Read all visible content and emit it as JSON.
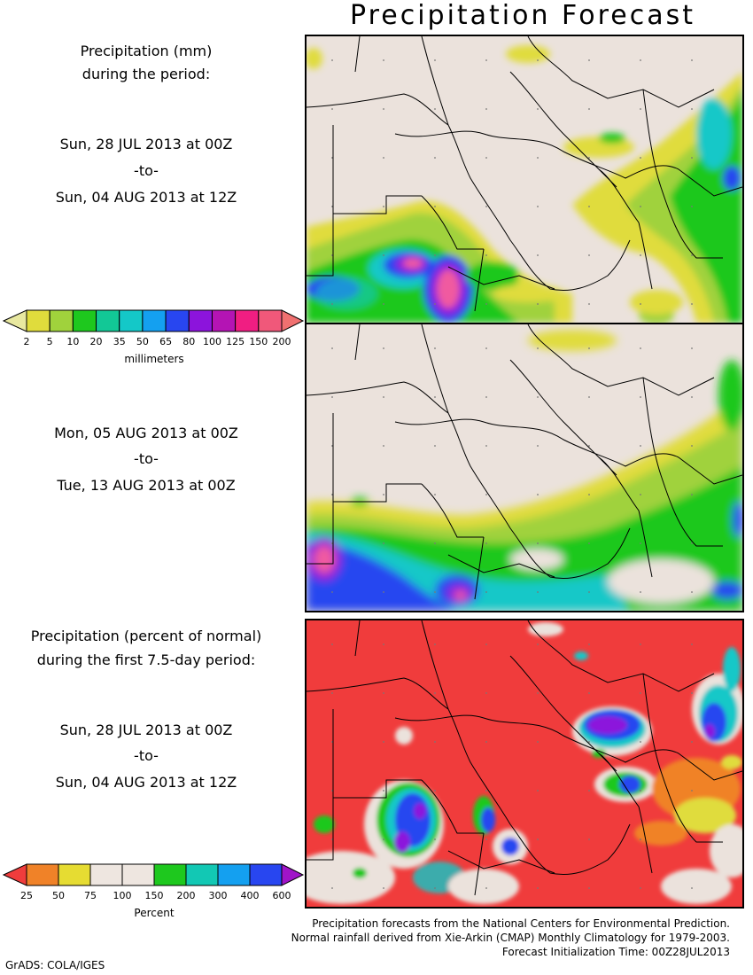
{
  "title": "Precipitation Forecast",
  "panel1": {
    "heading_line1": "Precipitation (mm)",
    "heading_line2": "during the period:",
    "start": "Sun, 28 JUL 2013 at 00Z",
    "to": "-to-",
    "end": "Sun, 04 AUG 2013 at 12Z"
  },
  "panel2": {
    "start": "Mon, 05 AUG 2013 at 00Z",
    "to": "-to-",
    "end": "Tue, 13 AUG 2013 at 00Z"
  },
  "panel3": {
    "heading_line1": "Precipitation (percent of normal)",
    "heading_line2": "during the first 7.5-day period:",
    "start": "Sun, 28 JUL 2013 at 00Z",
    "to": "-to-",
    "end": "Sun, 04 AUG 2013 at 12Z"
  },
  "colorbar_mm": {
    "unit": "millimeters",
    "labels": [
      "2",
      "5",
      "10",
      "20",
      "35",
      "50",
      "65",
      "80",
      "100",
      "125",
      "150",
      "200"
    ],
    "colors": [
      "#e8e8a0",
      "#e0dc3c",
      "#a0d23c",
      "#1ec81e",
      "#12c896",
      "#14c8c8",
      "#14a0f0",
      "#2846f0",
      "#8c14dc",
      "#b414b4",
      "#f01e82",
      "#f0587a",
      "#f07070"
    ]
  },
  "colorbar_pct": {
    "unit": "Percent",
    "labels": [
      "25",
      "50",
      "75",
      "100",
      "150",
      "200",
      "300",
      "400",
      "600"
    ],
    "colors": [
      "#f03c3c",
      "#f08228",
      "#e6dc32",
      "#eee6e0",
      "#eee6e0",
      "#1ec81e",
      "#12c8b4",
      "#14a0f0",
      "#2846f0",
      "#a014c8"
    ]
  },
  "map_colors": {
    "land": "#ebe2dc",
    "red": "#f03c3c",
    "yellow": "#e0dc3c",
    "lightgreen": "#a0d23c",
    "green": "#1ec81e",
    "cyan": "#14c8c8",
    "blue": "#2846f0",
    "purple": "#8c14dc",
    "pink": "#f05aa0"
  },
  "credits": {
    "line1": "Precipitation forecasts from the National Centers for Environmental Prediction.",
    "line2": "Normal rainfall derived from Xie-Arkin (CMAP) Monthly Climatology for 1979-2003.",
    "line3": "Forecast Initialization Time: 00Z28JUL2013"
  },
  "software": "GrADS: COLA/IGES"
}
